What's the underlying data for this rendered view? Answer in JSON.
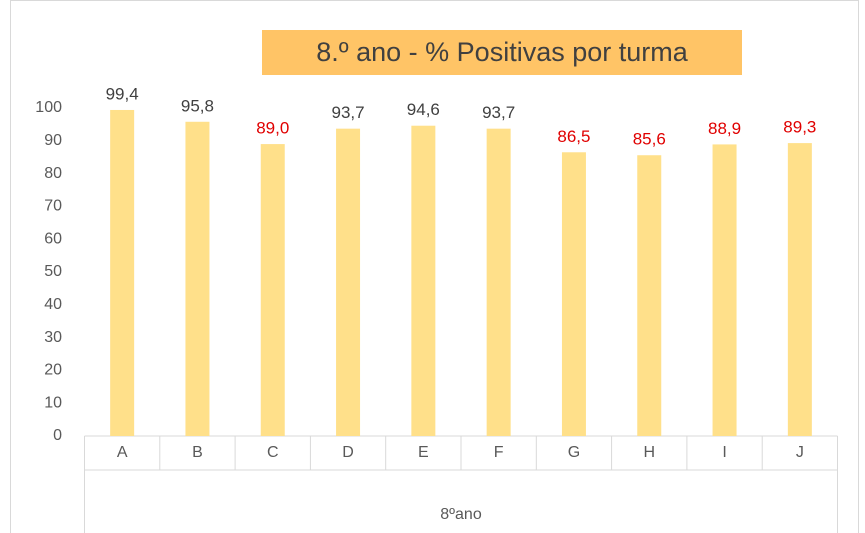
{
  "chart_data": {
    "type": "bar",
    "title": "8.º ano - % Positivas por turma",
    "categories": [
      "A",
      "B",
      "C",
      "D",
      "E",
      "F",
      "G",
      "H",
      "I",
      "J"
    ],
    "values": [
      99.4,
      95.8,
      89.0,
      93.7,
      94.6,
      93.7,
      86.5,
      85.6,
      88.9,
      89.3
    ],
    "value_labels": [
      "99,4",
      "95,8",
      "89,0",
      "93,7",
      "94,6",
      "93,7",
      "86,5",
      "85,6",
      "88,9",
      "89,3"
    ],
    "value_label_colors": [
      "#404040",
      "#404040",
      "#e00000",
      "#404040",
      "#404040",
      "#404040",
      "#e00000",
      "#e00000",
      "#e00000",
      "#e00000"
    ],
    "color": "#ffe08a",
    "title_background": "#ffc466",
    "xlabel": "8ºano",
    "ylim": [
      0,
      100
    ],
    "yticks": [
      0,
      10,
      20,
      30,
      40,
      50,
      60,
      70,
      80,
      90,
      100
    ],
    "grid": false
  }
}
